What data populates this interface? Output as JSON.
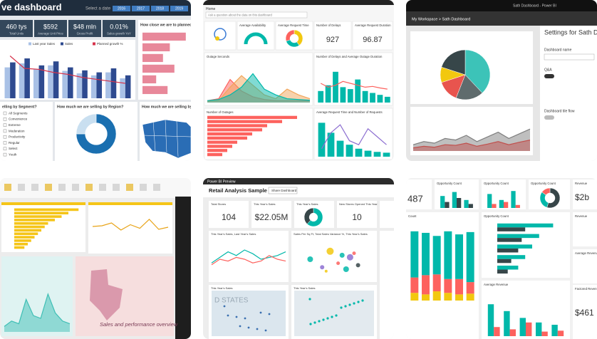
{
  "tile1": {
    "title": "ve dashboard",
    "date_label": "Select a date",
    "years": [
      "2016",
      "2017",
      "2018",
      "2019"
    ],
    "kpis": [
      {
        "value": "460 tys",
        "label": "Total Units"
      },
      {
        "value": "$592",
        "label": "Average Unit Price"
      },
      {
        "value": "$48 mln",
        "label": "Gross Profit"
      },
      {
        "value": "0.01%",
        "label": "Sales growth YoY"
      }
    ],
    "panel_titles": [
      "How close we are to planned sales",
      "elling by Segment?",
      "How much we are selling by Region?",
      "How much we are selling by S"
    ],
    "sales_chart": {
      "type": "bar",
      "ylim": [
        0,
        100
      ],
      "series": [
        {
          "name": "Last year Sales",
          "color": "#a9c1e6",
          "values": [
            62,
            70,
            58,
            66,
            55,
            50,
            46,
            52,
            40
          ]
        },
        {
          "name": "Sales",
          "color": "#2e4a8f",
          "values": [
            72,
            80,
            66,
            74,
            62,
            56,
            52,
            60,
            46
          ]
        },
        {
          "name": "Planned growth %",
          "color": "#d6334b",
          "type": "line",
          "values": [
            85,
            60,
            58,
            52,
            48,
            42,
            38,
            34,
            30
          ]
        }
      ]
    },
    "plan_chart": {
      "type": "bar",
      "orientation": "horizontal",
      "xlim": [
        0,
        100
      ],
      "series": [
        {
          "color": "#e8889a",
          "values": [
            95,
            60,
            45,
            70,
            30,
            55
          ]
        }
      ]
    },
    "segments": [
      "All Segments",
      "Convenience",
      "Extreme",
      "Moderation",
      "Productivity",
      "Regular",
      "Select",
      "Youth"
    ],
    "region_donut": {
      "type": "pie",
      "values": [
        75,
        25
      ],
      "colors": [
        "#1a6fb0",
        "#c9dff0"
      ]
    }
  },
  "tile2": {
    "home": "Home",
    "search": "Ask a question about the data on this dashboard",
    "cards": [
      {
        "title": "Average Availability"
      },
      {
        "title": "Average Request Time"
      },
      {
        "title": "Number of Delays",
        "value": "927"
      },
      {
        "title": "Average Request Duration",
        "value": "96.87"
      }
    ],
    "panels": [
      "Outage Seconds",
      "Number of Delays and Average Outage Duration",
      "Number of Outages",
      "Average Request Time and Number of Requests"
    ],
    "request_donut": {
      "type": "pie",
      "values": [
        40,
        30,
        30
      ],
      "colors": [
        "#f2c80f",
        "#01b8aa",
        "#fd625e"
      ]
    },
    "outage_area": {
      "type": "area",
      "ylim": [
        0,
        100
      ],
      "series": [
        {
          "color": "#fd625e",
          "values": [
            5,
            10,
            60,
            30,
            15,
            8,
            5,
            5,
            5,
            5
          ]
        },
        {
          "color": "#f2a65a",
          "values": [
            3,
            5,
            40,
            70,
            45,
            20,
            10,
            35,
            20,
            10
          ]
        },
        {
          "color": "#01b8aa",
          "values": [
            5,
            8,
            20,
            40,
            75,
            35,
            20,
            10,
            8,
            6
          ]
        }
      ]
    },
    "delays_chart": {
      "type": "bar",
      "ylim": [
        0,
        100
      ],
      "series": [
        {
          "color": "#01b8aa",
          "values": [
            30,
            45,
            80,
            40,
            35,
            60,
            30,
            25,
            20,
            15
          ]
        },
        {
          "color": "#fd625e",
          "type": "line",
          "values": [
            50,
            40,
            45,
            55,
            50,
            45,
            40,
            42,
            38,
            35
          ]
        }
      ]
    },
    "outage_bars": {
      "type": "bar",
      "orientation": "horizontal",
      "xlim": [
        0,
        100
      ],
      "series": [
        {
          "color": "#fd625e",
          "values": [
            90,
            75,
            60,
            55,
            45,
            40,
            30,
            25,
            20,
            15
          ]
        }
      ]
    },
    "request_chart": {
      "type": "bar",
      "ylim": [
        0,
        100
      ],
      "series": [
        {
          "color": "#01b8aa",
          "values": [
            85,
            60,
            40,
            30,
            20,
            15,
            12,
            10
          ]
        },
        {
          "color": "#8d6fd1",
          "type": "line",
          "values": [
            20,
            60,
            80,
            40,
            30,
            70,
            50,
            30
          ]
        }
      ]
    }
  },
  "tile3": {
    "window_title": "Sath Dashboard - Power BI",
    "breadcrumb": "My Workspace > Sath Dashboard",
    "settings_title": "Settings for Sath Dashboard",
    "settings_labels": [
      "Dashboard name",
      "Q&A",
      "Dashboard tile flow"
    ],
    "pie": {
      "type": "pie",
      "values": [
        38,
        18,
        14,
        10,
        20
      ],
      "colors": [
        "#3cc3b8",
        "#5f6b6d",
        "#e8544e",
        "#f2c80f",
        "#374649"
      ]
    },
    "area": {
      "type": "area",
      "ylim": [
        0,
        100
      ],
      "series": [
        {
          "color": "#7f7f7f",
          "values": [
            20,
            30,
            25,
            40,
            35,
            50,
            30,
            45,
            60,
            40,
            55,
            70
          ]
        },
        {
          "color": "#c0504d",
          "values": [
            10,
            15,
            12,
            20,
            18,
            25,
            15,
            22,
            30,
            20,
            28,
            35
          ]
        }
      ]
    }
  },
  "tile4": {
    "caption": "Sales and performance overview",
    "bars": {
      "type": "bar",
      "orientation": "horizontal",
      "xlim": [
        0,
        100
      ],
      "series": [
        {
          "color": "#f5c518",
          "values": [
            95,
            80,
            70,
            60,
            50,
            45,
            40,
            35,
            30,
            25,
            20,
            15
          ]
        }
      ]
    },
    "line": {
      "type": "line",
      "ylim": [
        0,
        100
      ],
      "series": [
        {
          "color": "#e8a317",
          "values": [
            60,
            62,
            70,
            50,
            65,
            55,
            80,
            52,
            58
          ]
        }
      ]
    },
    "area": {
      "type": "area",
      "ylim": [
        0,
        100
      ],
      "series": [
        {
          "color": "#3fbfb5",
          "values": [
            10,
            20,
            15,
            60,
            30,
            25,
            70,
            35,
            20,
            15
          ]
        }
      ]
    }
  },
  "tile5": {
    "app": "Power BI Preview",
    "title": "Retail Analysis Sample",
    "share": "Share Dashboard",
    "cards": [
      {
        "title": "Total Stores",
        "value": "104"
      },
      {
        "title": "This Year's Sales",
        "value": "$22.05M"
      },
      {
        "title": "This Year's Sales"
      },
      {
        "title": "New Stores Opened This Year",
        "value": "10"
      }
    ],
    "panels": [
      "This Year's Sales, Last Year's Sales",
      "Sales Per Sq Ft, Total Sales Variance %, This Year's Sales",
      "This Year's Sales",
      "This Year's Sales"
    ],
    "map_label": "D STATES",
    "donut": {
      "type": "pie",
      "values": [
        62,
        38
      ],
      "colors": [
        "#01b8aa",
        "#374649"
      ]
    },
    "lines": {
      "type": "line",
      "ylim": [
        0,
        100
      ],
      "series": [
        {
          "color": "#01b8aa",
          "values": [
            40,
            55,
            70,
            60,
            75,
            65,
            50,
            55,
            60,
            70
          ]
        },
        {
          "color": "#fd625e",
          "values": [
            35,
            50,
            45,
            55,
            50,
            40,
            45,
            60,
            50,
            45
          ]
        }
      ]
    },
    "scatter": {
      "type": "scatter",
      "xlim": [
        0,
        100
      ],
      "ylim": [
        0,
        100
      ],
      "x": [
        20,
        35,
        45,
        55,
        60,
        70,
        80,
        40,
        65,
        75
      ],
      "y": [
        50,
        30,
        70,
        40,
        60,
        55,
        35,
        20,
        25,
        65
      ],
      "size": [
        8,
        6,
        10,
        5,
        7,
        9,
        6,
        4,
        8,
        5
      ],
      "colors": [
        "#01b8aa",
        "#8d6fd1",
        "#f2c80f",
        "#fd625e",
        "#01b8aa",
        "#8d6fd1",
        "#374649",
        "#f2c80f",
        "#01b8aa",
        "#fd625e"
      ]
    }
  },
  "tile6": {
    "big_value": "487",
    "cards": [
      "Opportunity Count",
      "Opportunity Count",
      "Opportunity Count"
    ],
    "revenue": {
      "title": "Revenue",
      "value": "$2b"
    },
    "side_titles": [
      "Revenue",
      "Average Revenue",
      "Factored Revenue"
    ],
    "side_value": "$461",
    "panel_titles": [
      "Count",
      "Opportunity Count",
      "Average Revenue"
    ],
    "mini1": {
      "type": "bar",
      "ylim": [
        0,
        100
      ],
      "series": [
        {
          "color": "#01b8aa",
          "values": [
            60,
            80,
            40
          ]
        },
        {
          "color": "#374649",
          "values": [
            30,
            50,
            20
          ]
        }
      ]
    },
    "mini2": {
      "type": "bar",
      "ylim": [
        0,
        100
      ],
      "series": [
        {
          "color": "#01b8aa",
          "values": [
            70,
            40,
            85
          ]
        },
        {
          "color": "#fd625e",
          "values": [
            20,
            30,
            15
          ]
        }
      ]
    },
    "donut": {
      "type": "pie",
      "values": [
        55,
        30,
        15
      ],
      "colors": [
        "#374649",
        "#01b8aa",
        "#fd625e"
      ]
    },
    "stacked": {
      "type": "bar",
      "stacked": true,
      "ylim": [
        0,
        100
      ],
      "series": [
        {
          "color": "#f2c80f",
          "values": [
            10,
            8,
            12,
            10,
            8,
            9
          ]
        },
        {
          "color": "#fd625e",
          "values": [
            20,
            25,
            22,
            18,
            20,
            15
          ]
        },
        {
          "color": "#01b8aa",
          "values": [
            60,
            55,
            50,
            62,
            58,
            65
          ]
        }
      ]
    },
    "hbars": {
      "type": "bar",
      "orientation": "horizontal",
      "xlim": [
        0,
        100
      ],
      "series": [
        {
          "color": "#01b8aa",
          "values": [
            80,
            60,
            50,
            40,
            30
          ]
        },
        {
          "color": "#374649",
          "values": [
            40,
            35,
            30,
            20,
            15
          ]
        }
      ]
    },
    "bars": {
      "type": "bar",
      "ylim": [
        0,
        100
      ],
      "series": [
        {
          "color": "#01b8aa",
          "values": [
            70,
            55,
            40,
            30,
            25
          ]
        },
        {
          "color": "#fd625e",
          "values": [
            20,
            15,
            30,
            10,
            12
          ]
        }
      ]
    }
  }
}
